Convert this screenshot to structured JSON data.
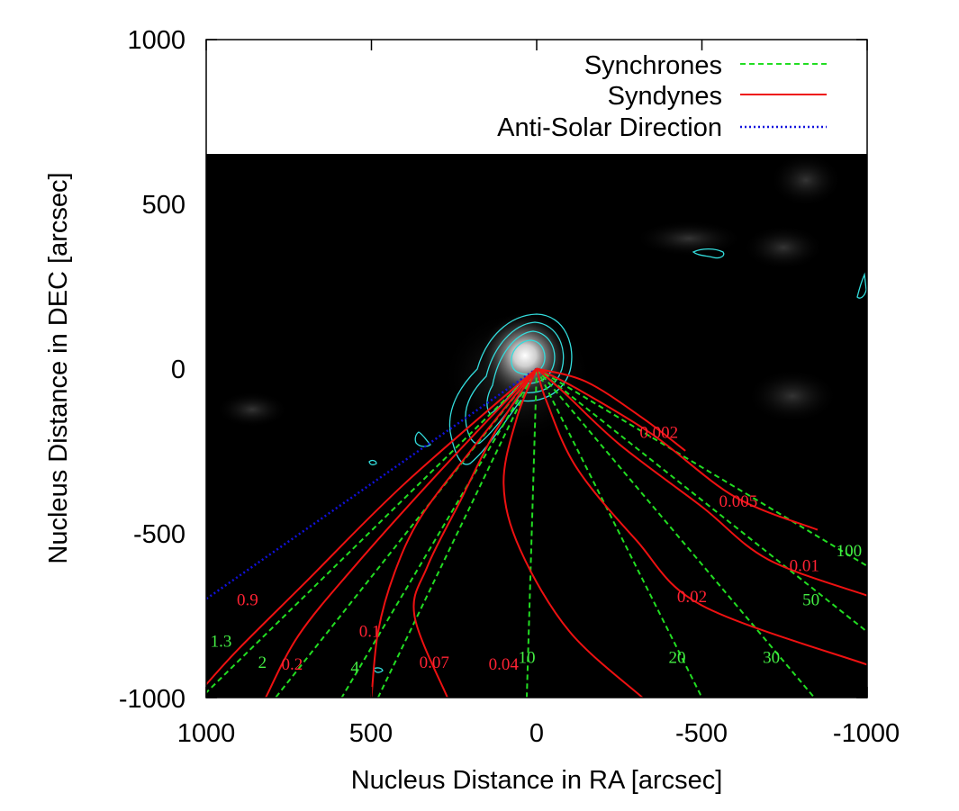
{
  "chart_data": {
    "type": "line",
    "title": "",
    "xlabel": "Nucleus Distance in RA [arcsec]",
    "ylabel": "Nucleus Distance in DEC [arcsec]",
    "xlim": [
      1000,
      -1000
    ],
    "ylim": [
      -1000,
      1000
    ],
    "x_ticks": [
      "1000",
      "500",
      "0",
      "-500",
      "-1000"
    ],
    "y_ticks": [
      "1000",
      "500",
      "0",
      "-500",
      "-1000"
    ],
    "grid": false,
    "legend_position": "top-right",
    "background_image": "grayscale comet image with cyan isophote contours",
    "colors": {
      "synchrones": "#22dd22",
      "syndynes": "#ee1111",
      "anti_solar": "#1111dd",
      "contours": "#33dddd",
      "synchrone_labels": "#44ee44",
      "syndyne_labels": "#ff2233"
    },
    "legend": [
      {
        "name": "Synchrones",
        "style": "dashed",
        "color": "#22dd22"
      },
      {
        "name": "Syndynes",
        "style": "solid",
        "color": "#ee1111"
      },
      {
        "name": "Anti-Solar Direction",
        "style": "dotted",
        "color": "#1111dd"
      }
    ],
    "anti_solar": {
      "points": [
        [
          0,
          0
        ],
        [
          1000,
          -700
        ]
      ]
    },
    "synchrones": [
      {
        "label": "1.3",
        "points": [
          [
            0,
            0
          ],
          [
            1000,
            -985
          ]
        ]
      },
      {
        "label": "2",
        "points": [
          [
            0,
            0
          ],
          [
            790,
            -1000
          ]
        ]
      },
      {
        "label": "4",
        "points": [
          [
            0,
            0
          ],
          [
            590,
            -1000
          ]
        ]
      },
      {
        "label": "",
        "points": [
          [
            0,
            0
          ],
          [
            480,
            -1000
          ]
        ]
      },
      {
        "label": "10",
        "points": [
          [
            0,
            0
          ],
          [
            30,
            -1000
          ]
        ]
      },
      {
        "label": "20",
        "points": [
          [
            0,
            0
          ],
          [
            -500,
            -1000
          ]
        ]
      },
      {
        "label": "30",
        "points": [
          [
            0,
            0
          ],
          [
            -840,
            -1000
          ]
        ]
      },
      {
        "label": "50",
        "points": [
          [
            0,
            0
          ],
          [
            -1000,
            -800
          ]
        ]
      },
      {
        "label": "100",
        "points": [
          [
            0,
            0
          ],
          [
            -1000,
            -600
          ]
        ]
      }
    ],
    "syndynes": [
      {
        "label": "0.9",
        "points": [
          [
            0,
            0
          ],
          [
            400,
            -350
          ],
          [
            700,
            -650
          ],
          [
            900,
            -850
          ],
          [
            1000,
            -960
          ]
        ]
      },
      {
        "label": "0.2",
        "points": [
          [
            0,
            0
          ],
          [
            300,
            -320
          ],
          [
            550,
            -600
          ],
          [
            720,
            -810
          ],
          [
            820,
            -1000
          ]
        ]
      },
      {
        "label": "0.1",
        "points": [
          [
            0,
            0
          ],
          [
            200,
            -250
          ],
          [
            350,
            -450
          ],
          [
            430,
            -620
          ],
          [
            480,
            -800
          ],
          [
            500,
            -1000
          ]
        ]
      },
      {
        "label": "0.07",
        "points": [
          [
            0,
            0
          ],
          [
            130,
            -200
          ],
          [
            230,
            -400
          ],
          [
            330,
            -600
          ],
          [
            370,
            -750
          ],
          [
            270,
            -1000
          ]
        ]
      },
      {
        "label": "0.04",
        "points": [
          [
            0,
            0
          ],
          [
            60,
            -150
          ],
          [
            100,
            -350
          ],
          [
            50,
            -550
          ],
          [
            -100,
            -800
          ],
          [
            -320,
            -1000
          ]
        ]
      },
      {
        "label": "0.02",
        "points": [
          [
            0,
            0
          ],
          [
            -30,
            -100
          ],
          [
            -120,
            -300
          ],
          [
            -300,
            -520
          ],
          [
            -500,
            -720
          ],
          [
            -1000,
            -900
          ]
        ]
      },
      {
        "label": "0.01",
        "points": [
          [
            0,
            0
          ],
          [
            -80,
            -70
          ],
          [
            -250,
            -230
          ],
          [
            -500,
            -420
          ],
          [
            -700,
            -580
          ],
          [
            -1000,
            -690
          ]
        ]
      },
      {
        "label": "0.005",
        "points": [
          [
            0,
            0
          ],
          [
            -120,
            -60
          ],
          [
            -350,
            -200
          ],
          [
            -600,
            -390
          ],
          [
            -850,
            -490
          ]
        ]
      },
      {
        "label": "0.002",
        "points": [
          [
            0,
            0
          ],
          [
            -150,
            -40
          ],
          [
            -320,
            -150
          ],
          [
            -450,
            -250
          ]
        ]
      }
    ],
    "label_positions": {
      "synchrones": [
        {
          "text": "1.3",
          "x": 955,
          "y": -845
        },
        {
          "text": "2",
          "x": 830,
          "y": -910
        },
        {
          "text": "4",
          "x": 550,
          "y": -925
        },
        {
          "text": "10",
          "x": 30,
          "y": -895
        },
        {
          "text": "20",
          "x": -425,
          "y": -895
        },
        {
          "text": "30",
          "x": -710,
          "y": -895
        },
        {
          "text": "50",
          "x": -830,
          "y": -720
        },
        {
          "text": "100",
          "x": -945,
          "y": -570
        }
      ],
      "syndynes": [
        {
          "text": "0.9",
          "x": 875,
          "y": -720
        },
        {
          "text": "0.2",
          "x": 740,
          "y": -915
        },
        {
          "text": "0.1",
          "x": 505,
          "y": -815
        },
        {
          "text": "0.07",
          "x": 310,
          "y": -910
        },
        {
          "text": "0.04",
          "x": 100,
          "y": -915
        },
        {
          "text": "0.02",
          "x": -470,
          "y": -710
        },
        {
          "text": "0.01",
          "x": -810,
          "y": -615
        },
        {
          "text": "0.005",
          "x": -610,
          "y": -420
        },
        {
          "text": "0.002",
          "x": -370,
          "y": -210
        }
      ]
    }
  }
}
